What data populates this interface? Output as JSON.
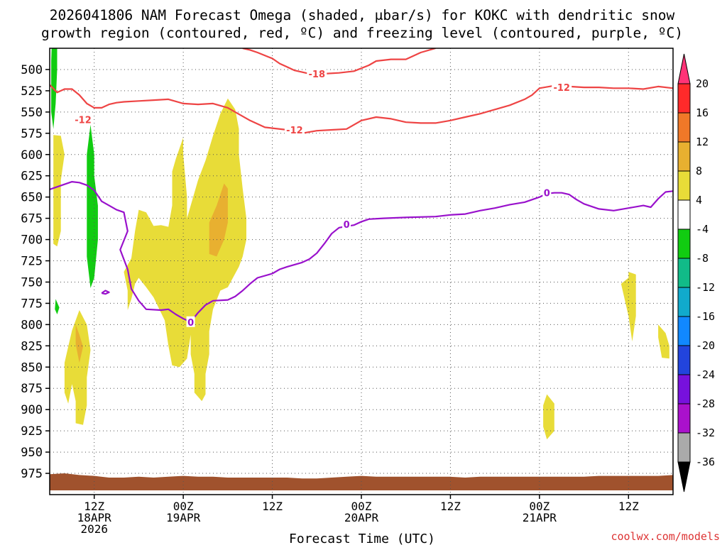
{
  "chart_data": {
    "type": "time-height cross section",
    "title_lines": [
      "2026041806 NAM Forecast Omega (shaded, μbar/s) for KOKC with dendritic snow",
      "growth region (contoured, red, ºC) and freezing level (contoured, purple, ºC)"
    ],
    "xlabel": "Forecast Time (UTC)",
    "credit": "coolwx.com/models",
    "x_ticks": [
      {
        "hours": 6,
        "lines": [
          "12Z",
          "18APR",
          "2026"
        ]
      },
      {
        "hours": 18,
        "lines": [
          "00Z",
          "19APR"
        ]
      },
      {
        "hours": 30,
        "lines": [
          "12Z"
        ]
      },
      {
        "hours": 42,
        "lines": [
          "00Z",
          "20APR"
        ]
      },
      {
        "hours": 54,
        "lines": [
          "12Z"
        ]
      },
      {
        "hours": 66,
        "lines": [
          "00Z",
          "21APR"
        ]
      },
      {
        "hours": 78,
        "lines": [
          "12Z"
        ]
      }
    ],
    "x_range_hours": [
      0,
      84
    ],
    "y_range_hPa": [
      475,
      1000
    ],
    "y_ticks_hPa": [
      500,
      525,
      550,
      575,
      600,
      625,
      650,
      675,
      700,
      725,
      750,
      775,
      800,
      825,
      850,
      875,
      900,
      925,
      950,
      975
    ],
    "colorbar": {
      "labels": [
        "20",
        "16",
        "12",
        "8",
        "4",
        "-4",
        "-8",
        "-12",
        "-16",
        "-20",
        "-24",
        "-28",
        "-32",
        "-36"
      ],
      "colors": [
        "#ff3377",
        "#ff2a2a",
        "#f07828",
        "#e8b030",
        "#e8dc38",
        "#ffffff",
        "#11cc11",
        "#11bb88",
        "#11aacc",
        "#1188ff",
        "#2244dd",
        "#7711dd",
        "#aa11cc",
        "#aaaaaa",
        "#000000"
      ]
    },
    "contour_colors": {
      "dgz": "#ee4444",
      "freezing": "#9911cc",
      "terrain": "#a0522d"
    },
    "dgz_m12_contour_1": [
      [
        0,
        518
      ],
      [
        1,
        527
      ],
      [
        2,
        523
      ],
      [
        3,
        523
      ],
      [
        4,
        530
      ],
      [
        5,
        540
      ],
      [
        6,
        545
      ],
      [
        7,
        545
      ],
      [
        8,
        541
      ],
      [
        9,
        539
      ],
      [
        10,
        538
      ],
      [
        12,
        537
      ],
      [
        14,
        536
      ],
      [
        16,
        535
      ],
      [
        18,
        540
      ],
      [
        20,
        541
      ],
      [
        22,
        540
      ],
      [
        24,
        545
      ],
      [
        25,
        550
      ],
      [
        27,
        560
      ],
      [
        29,
        568
      ],
      [
        30,
        569
      ],
      [
        32,
        571
      ],
      [
        34,
        575
      ],
      [
        36,
        572
      ],
      [
        38,
        571
      ],
      [
        40,
        570
      ],
      [
        42,
        560
      ],
      [
        44,
        556
      ],
      [
        46,
        558
      ],
      [
        48,
        562
      ],
      [
        50,
        563
      ],
      [
        52,
        563
      ],
      [
        54,
        560
      ],
      [
        56,
        556
      ],
      [
        58,
        552
      ],
      [
        60,
        547
      ],
      [
        62,
        542
      ],
      [
        64,
        535
      ],
      [
        65,
        530
      ],
      [
        66,
        522
      ],
      [
        68,
        519
      ],
      [
        70,
        520
      ],
      [
        72,
        521
      ],
      [
        74,
        521
      ],
      [
        76,
        522
      ],
      [
        78,
        522
      ],
      [
        80,
        523
      ],
      [
        82,
        520
      ],
      [
        84,
        522
      ]
    ],
    "dgz_m18_contour_1": [
      [
        26,
        475
      ],
      [
        27,
        477
      ],
      [
        28,
        480
      ],
      [
        30,
        487
      ],
      [
        31,
        493
      ],
      [
        32,
        497
      ],
      [
        33,
        501
      ],
      [
        35,
        505
      ],
      [
        37,
        505
      ],
      [
        39,
        504
      ],
      [
        41,
        502
      ],
      [
        43,
        495
      ],
      [
        44,
        490
      ],
      [
        46,
        488
      ],
      [
        48,
        488
      ],
      [
        50,
        480
      ],
      [
        52,
        475
      ]
    ],
    "freezing_0_contour_1": [
      [
        0,
        641
      ],
      [
        1,
        638
      ],
      [
        2,
        635
      ],
      [
        3,
        632
      ],
      [
        4,
        633
      ],
      [
        5,
        636
      ],
      [
        6,
        642
      ],
      [
        7,
        655
      ],
      [
        8,
        660
      ],
      [
        9,
        665
      ],
      [
        10,
        668
      ],
      [
        10.5,
        690
      ],
      [
        9.5,
        712
      ],
      [
        10.5,
        735
      ],
      [
        11,
        758
      ],
      [
        12,
        772
      ],
      [
        13,
        782
      ],
      [
        15,
        783
      ],
      [
        16,
        782
      ],
      [
        17,
        788
      ],
      [
        18,
        793
      ],
      [
        19,
        797
      ],
      [
        20,
        786
      ],
      [
        21,
        777
      ],
      [
        22,
        772
      ],
      [
        24,
        771
      ],
      [
        25,
        767
      ],
      [
        26,
        760
      ],
      [
        27,
        752
      ],
      [
        28,
        745
      ],
      [
        30,
        740
      ],
      [
        31,
        735
      ],
      [
        32,
        732
      ],
      [
        34,
        727
      ],
      [
        35,
        723
      ],
      [
        36,
        716
      ],
      [
        37,
        705
      ],
      [
        38,
        693
      ],
      [
        39,
        686
      ],
      [
        41,
        683
      ],
      [
        42,
        679
      ],
      [
        43,
        676
      ],
      [
        45,
        675
      ],
      [
        48,
        674
      ],
      [
        52,
        673
      ],
      [
        54,
        671
      ],
      [
        56,
        670
      ],
      [
        58,
        666
      ],
      [
        60,
        663
      ],
      [
        62,
        659
      ],
      [
        64,
        656
      ],
      [
        66,
        650
      ],
      [
        67,
        646
      ],
      [
        68,
        645
      ],
      [
        69,
        645
      ],
      [
        70,
        647
      ],
      [
        71,
        653
      ],
      [
        72,
        658
      ],
      [
        74,
        664
      ],
      [
        76,
        666
      ],
      [
        78,
        663
      ],
      [
        80,
        660
      ],
      [
        81,
        662
      ],
      [
        82,
        652
      ],
      [
        83,
        644
      ],
      [
        84,
        643
      ]
    ],
    "freezing_0_contour_2": [
      [
        7,
        763
      ],
      [
        7.5,
        760
      ],
      [
        8,
        762
      ],
      [
        7.5,
        764
      ],
      [
        7,
        763
      ]
    ],
    "contour_labels": [
      {
        "text": "-12",
        "at": [
          4.5,
          559
        ],
        "color": "#ee4444"
      },
      {
        "text": "-18",
        "at": [
          36,
          505
        ],
        "color": "#ee4444"
      },
      {
        "text": "-12",
        "at": [
          33,
          571
        ],
        "color": "#ee4444"
      },
      {
        "text": "-12",
        "at": [
          69,
          521
        ],
        "color": "#ee4444"
      },
      {
        "text": "0",
        "at": [
          40,
          682
        ],
        "color": "#9911cc"
      },
      {
        "text": "0",
        "at": [
          19,
          797
        ],
        "color": "#9911cc"
      },
      {
        "text": "0",
        "at": [
          67,
          645
        ],
        "color": "#9911cc"
      }
    ],
    "omega_4_region_1": [
      [
        0.5,
        577
      ],
      [
        1.5,
        578
      ],
      [
        2,
        600
      ],
      [
        1.5,
        630
      ],
      [
        1.5,
        660
      ],
      [
        1.5,
        690
      ],
      [
        1,
        708
      ],
      [
        0.5,
        705
      ],
      [
        0.5,
        650
      ]
    ],
    "omega_4_region_2": [
      [
        2,
        845
      ],
      [
        2.5,
        826
      ],
      [
        3,
        807
      ],
      [
        4,
        783
      ],
      [
        5,
        800
      ],
      [
        5.5,
        830
      ],
      [
        5,
        862
      ],
      [
        5,
        895
      ],
      [
        4.5,
        918
      ],
      [
        3.5,
        916
      ],
      [
        3.5,
        890
      ],
      [
        3,
        870
      ],
      [
        2.5,
        893
      ],
      [
        2,
        880
      ]
    ],
    "omega_8_region_2": [
      [
        3.5,
        800
      ],
      [
        4,
        812
      ],
      [
        4.5,
        826
      ],
      [
        4,
        845
      ],
      [
        3.5,
        823
      ]
    ],
    "omega_4_region_3": [
      [
        10,
        738
      ],
      [
        11,
        722
      ],
      [
        11.5,
        690
      ],
      [
        12,
        665
      ],
      [
        13,
        668
      ],
      [
        14,
        684
      ],
      [
        15,
        683
      ],
      [
        16,
        685
      ],
      [
        16.5,
        660
      ],
      [
        16.5,
        620
      ],
      [
        17,
        605
      ],
      [
        18,
        580
      ],
      [
        18,
        600
      ],
      [
        18.5,
        650
      ],
      [
        18.5,
        675
      ],
      [
        19,
        660
      ],
      [
        20,
        630
      ],
      [
        21,
        607
      ],
      [
        22,
        578
      ],
      [
        23,
        552
      ],
      [
        24,
        534
      ],
      [
        25,
        547
      ],
      [
        25.5,
        570
      ],
      [
        25.5,
        600
      ],
      [
        26,
        640
      ],
      [
        26.5,
        675
      ],
      [
        26.5,
        700
      ],
      [
        26,
        720
      ],
      [
        25.5,
        732
      ],
      [
        25,
        740
      ],
      [
        24,
        756
      ],
      [
        23,
        760
      ],
      [
        22,
        782
      ],
      [
        21.5,
        808
      ],
      [
        21.5,
        835
      ],
      [
        21,
        858
      ],
      [
        21,
        882
      ],
      [
        20.5,
        890
      ],
      [
        19.5,
        880
      ],
      [
        19.5,
        858
      ],
      [
        19,
        835
      ],
      [
        19,
        812
      ],
      [
        18.5,
        840
      ],
      [
        17.5,
        850
      ],
      [
        16.5,
        848
      ],
      [
        16,
        825
      ],
      [
        15.5,
        795
      ],
      [
        14,
        768
      ],
      [
        13,
        756
      ],
      [
        12,
        745
      ],
      [
        11.5,
        752
      ],
      [
        11,
        770
      ],
      [
        10.5,
        783
      ],
      [
        10.5,
        760
      ]
    ],
    "omega_8_region_3": [
      [
        21.5,
        680
      ],
      [
        22.5,
        660
      ],
      [
        23.5,
        634
      ],
      [
        24,
        640
      ],
      [
        24,
        680
      ],
      [
        23.5,
        700
      ],
      [
        22.5,
        720
      ],
      [
        21.5,
        717
      ],
      [
        21.5,
        700
      ]
    ],
    "omega_4_region_4": [
      [
        78,
        738
      ],
      [
        79,
        741
      ],
      [
        79,
        790
      ],
      [
        78.5,
        820
      ],
      [
        78,
        790
      ],
      [
        77,
        752
      ],
      [
        78,
        745
      ]
    ],
    "omega_4_region_5": [
      [
        82,
        800
      ],
      [
        83,
        810
      ],
      [
        83.5,
        825
      ],
      [
        83.5,
        840
      ],
      [
        82.5,
        839
      ],
      [
        82,
        815
      ]
    ],
    "omega_4_region_6": [
      [
        67,
        882
      ],
      [
        68,
        893
      ],
      [
        68,
        925
      ],
      [
        67,
        935
      ],
      [
        66.5,
        920
      ],
      [
        66.5,
        895
      ]
    ],
    "omega_m4_region_1": [
      [
        0.3,
        465
      ],
      [
        1,
        465
      ],
      [
        1,
        500
      ],
      [
        0.8,
        540
      ],
      [
        0.5,
        570
      ],
      [
        0.2,
        550
      ],
      [
        0.2,
        490
      ]
    ],
    "omega_m4_region_2": [
      [
        5,
        638
      ],
      [
        5,
        600
      ],
      [
        5.5,
        565
      ],
      [
        6,
        600
      ],
      [
        6,
        625
      ],
      [
        6.5,
        660
      ],
      [
        6.5,
        700
      ],
      [
        6,
        745
      ],
      [
        5.5,
        757
      ],
      [
        5,
        720
      ],
      [
        5,
        680
      ]
    ],
    "omega_m4_region_3": [
      [
        0.8,
        770
      ],
      [
        1.3,
        780
      ],
      [
        1,
        788
      ],
      [
        0.7,
        782
      ]
    ],
    "terrain_region_1": [
      [
        0,
        976
      ],
      [
        2,
        975
      ],
      [
        4,
        977
      ],
      [
        6,
        978
      ],
      [
        8,
        980
      ],
      [
        10,
        980
      ],
      [
        12,
        979
      ],
      [
        14,
        980
      ],
      [
        16,
        979
      ],
      [
        18,
        978
      ],
      [
        20,
        979
      ],
      [
        22,
        979
      ],
      [
        24,
        980
      ],
      [
        26,
        980
      ],
      [
        28,
        980
      ],
      [
        30,
        980
      ],
      [
        32,
        980
      ],
      [
        34,
        981
      ],
      [
        36,
        981
      ],
      [
        38,
        980
      ],
      [
        40,
        979
      ],
      [
        42,
        978
      ],
      [
        44,
        979
      ],
      [
        46,
        979
      ],
      [
        48,
        979
      ],
      [
        50,
        979
      ],
      [
        52,
        979
      ],
      [
        54,
        979
      ],
      [
        56,
        980
      ],
      [
        58,
        979
      ],
      [
        60,
        979
      ],
      [
        62,
        979
      ],
      [
        64,
        979
      ],
      [
        66,
        979
      ],
      [
        68,
        979
      ],
      [
        70,
        979
      ],
      [
        72,
        979
      ],
      [
        74,
        978
      ],
      [
        76,
        978
      ],
      [
        78,
        978
      ],
      [
        80,
        978
      ],
      [
        82,
        978
      ],
      [
        84,
        977
      ],
      [
        84,
        995
      ],
      [
        0,
        995
      ]
    ]
  }
}
